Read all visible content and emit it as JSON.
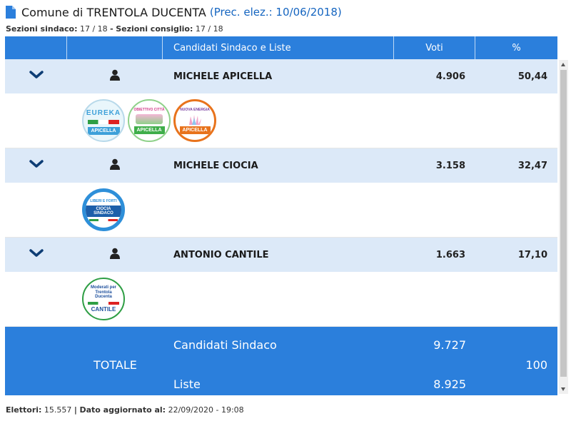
{
  "header": {
    "title": "Comune di TRENTOLA DUCENTA",
    "prec": "(Prec. elez.: 10/06/2018)"
  },
  "sezioni": {
    "sindaco_label": "Sezioni sindaco:",
    "sindaco_value": "17 / 18",
    "sep": "-",
    "consiglio_label": "Sezioni consiglio:",
    "consiglio_value": "17 / 18"
  },
  "table": {
    "columns": [
      "",
      "",
      "Candidati Sindaco e Liste",
      "Voti",
      "%"
    ],
    "candidates": [
      {
        "name": "MICHELE APICELLA",
        "voti": "4.906",
        "pct": "50,44",
        "lists": [
          {
            "top": "EUREKA",
            "bottom": "APICELLA"
          },
          {
            "top": "OBIETTIVO CITTÀ",
            "bottom": "APICELLA"
          },
          {
            "top": "NUOVA ENERGIA",
            "bottom": "APICELLA"
          }
        ]
      },
      {
        "name": "MICHELE CIOCIA",
        "voti": "3.158",
        "pct": "32,47",
        "lists": [
          {
            "top": "LIBERI E FORTI",
            "bottom": "CIOCIA SINDACO"
          }
        ]
      },
      {
        "name": "ANTONIO CANTILE",
        "voti": "1.663",
        "pct": "17,10",
        "lists": [
          {
            "top": "Moderati per Trentola Ducenta",
            "bottom": "CANTILE"
          }
        ]
      }
    ]
  },
  "totale": {
    "label": "TOTALE",
    "candidati_label": "Candidati Sindaco",
    "candidati_value": "9.727",
    "liste_label": "Liste",
    "liste_value": "8.925",
    "pct": "100"
  },
  "footer": {
    "elettori_label": "Elettori:",
    "elettori_value": "15.557",
    "sep": "|",
    "agg_label": "Dato aggiornato al:",
    "agg_value": "22/09/2020 - 19:08"
  },
  "colors": {
    "accent": "#2b7fdc",
    "row_bg": "#dce9f8",
    "title_link": "#1565c0"
  }
}
